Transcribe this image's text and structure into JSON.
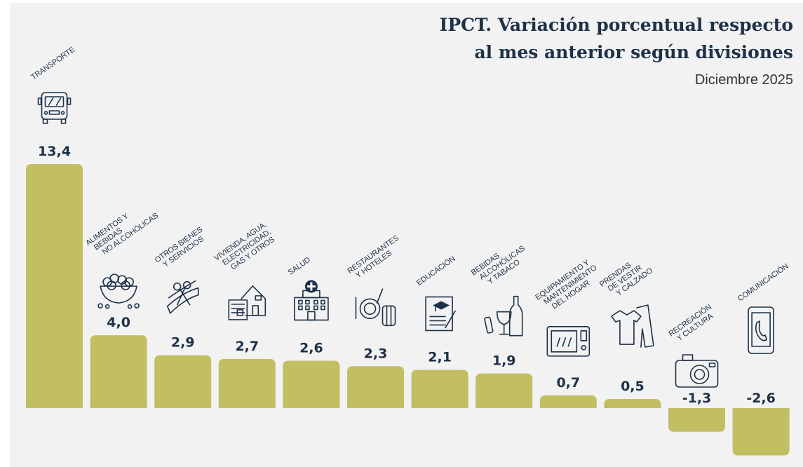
{
  "title": "IPCT. Variación porcentual respecto al mes anterior según divisiones",
  "title_lines": [
    "IPCT. Variación porcentual respecto",
    "al mes anterior según divisiones"
  ],
  "subtitle": "Diciembre 2025",
  "bar_color": "#c1bf62",
  "text_color": "#1d3148",
  "chart_data": {
    "type": "bar",
    "title": "IPCT. Variación porcentual respecto al mes anterior según divisiones",
    "subtitle": "Diciembre 2025",
    "xlabel": "",
    "ylabel": "",
    "ylim": [
      -2.6,
      13.4
    ],
    "grid": false,
    "categories": [
      "TRANSPORTE",
      "ALIMENTOS Y BEBIDAS NO ALCOHÓLICAS",
      "OTROS BIENES Y SERVICIOS",
      "VIVIENDA, AGUA, ELECTRICIDAD, GAS Y OTROS",
      "SALUD",
      "RESTAURANTES Y HOTELES",
      "EDUCACIÓN",
      "BEBIDAS ALCOHÓLICAS Y TABACO",
      "EQUIPAMIENTO Y MANTENIMIENTO DEL HOGAR",
      "PRENDAS DE VESTIR Y CALZADO",
      "RECREACIÓN Y CULTURA",
      "COMUNICACIÓN"
    ],
    "values": [
      13.4,
      4.0,
      2.9,
      2.7,
      2.6,
      2.3,
      2.1,
      1.9,
      0.7,
      0.5,
      -1.3,
      -2.6
    ],
    "value_labels": [
      "13,4",
      "4,0",
      "2,9",
      "2,7",
      "2,6",
      "2,3",
      "2,1",
      "1,9",
      "0,7",
      "0,5",
      "-1,3",
      "-2,6"
    ],
    "label_lines": [
      [
        "TRANSPORTE"
      ],
      [
        "ALIMENTOS Y",
        "BEBIDAS",
        "NO ALCOHÓLICAS"
      ],
      [
        "OTROS BIENES",
        "Y SERVICIOS"
      ],
      [
        "VIVIENDA, AGUA,",
        "ELECTRICIDAD,",
        "GAS Y OTROS"
      ],
      [
        "SALUD"
      ],
      [
        "RESTAURANTES",
        "Y HOTELES"
      ],
      [
        "EDUCACIÓN"
      ],
      [
        "BEBIDAS",
        "ALCOHÓLICAS",
        "Y TABACO"
      ],
      [
        "EQUIPAMIENTO Y",
        "MANTENIMIENTO",
        "DEL HOGAR"
      ],
      [
        "PRENDAS",
        "DE VESTIR",
        "Y CALZADO"
      ],
      [
        "RECREACIÓN",
        "Y CULTURA"
      ],
      [
        "COMUNICACIÓN"
      ]
    ],
    "icons": [
      "bus-icon",
      "food-bowl-icon",
      "scissors-icon",
      "house-document-icon",
      "hospital-icon",
      "plate-luggage-icon",
      "diploma-icon",
      "bottle-glass-icon",
      "microwave-icon",
      "clothes-icon",
      "camera-icon",
      "phone-icon"
    ]
  }
}
